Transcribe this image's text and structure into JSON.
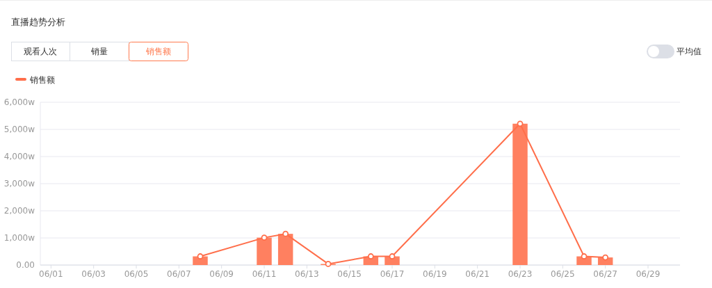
{
  "chart_data": {
    "type": "bar",
    "title": "直播趋势分析",
    "annotations": [
      "观看人次",
      "销量",
      "销售额",
      "平均值"
    ],
    "categories": [
      "06/01",
      null,
      "06/03",
      null,
      "06/05",
      null,
      "06/07",
      null,
      "06/09",
      null,
      "06/11",
      null,
      "06/13",
      null,
      "06/15",
      null,
      "06/17",
      null,
      "06/19",
      null,
      "06/21",
      null,
      "06/23",
      null,
      "06/25",
      null,
      "06/27",
      null,
      "06/29",
      null
    ],
    "series": [
      {
        "color": "#ff8060",
        "values": [
          null,
          null,
          null,
          null,
          null,
          null,
          null,
          320,
          null,
          null,
          1010,
          1150,
          null,
          40,
          null,
          320,
          320,
          null,
          null,
          null,
          null,
          null,
          5210,
          null,
          null,
          320,
          280,
          null,
          null,
          null
        ]
      },
      {
        "type": "line",
        "name": "销售额",
        "color": "#ff6e4a",
        "values": [
          null,
          null,
          null,
          null,
          null,
          null,
          null,
          320,
          null,
          null,
          1010,
          1150,
          null,
          40,
          null,
          320,
          320,
          null,
          null,
          null,
          null,
          null,
          5210,
          null,
          null,
          320,
          280,
          null,
          null,
          null
        ]
      }
    ],
    "ylim": [
      0,
      6000
    ],
    "yticks": [
      {
        "value": 0,
        "label": "0.00"
      },
      {
        "value": 1000,
        "label": "1,000w"
      },
      {
        "value": 2000,
        "label": "2,000w"
      },
      {
        "value": 3000,
        "label": "3,000w"
      },
      {
        "value": 4000,
        "label": "4,000w"
      },
      {
        "value": 5000,
        "label": "5,000w"
      },
      {
        "value": 6000,
        "label": "6,000w"
      }
    ],
    "grid": "y",
    "legend": "top left",
    "marker": "circle",
    "line_style": "solid"
  }
}
